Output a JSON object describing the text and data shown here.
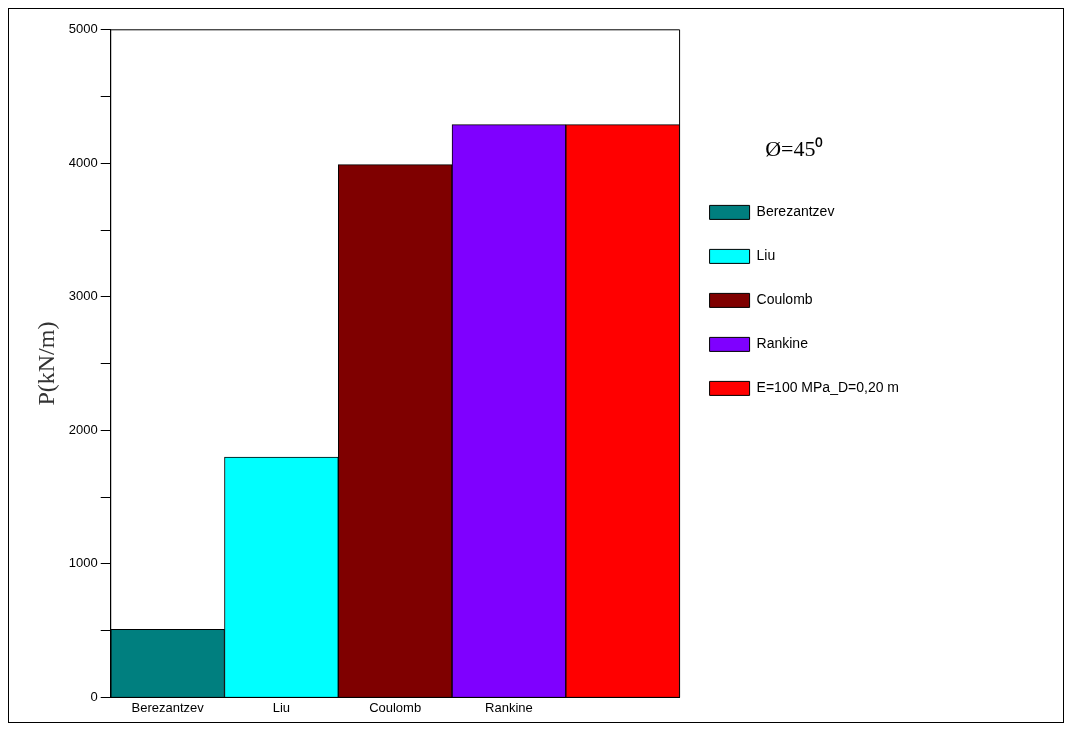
{
  "chart_data": {
    "type": "bar",
    "ylabel": "P(kN/m)",
    "legend_title": "Ø=45⁰",
    "legend": "right",
    "grid": false,
    "categories": [
      "Berezantzev",
      "Liu",
      "Coulomb",
      "Rankine",
      null
    ],
    "series": [
      {
        "name": "Berezantzev",
        "color": "#007f7f",
        "values": [
          510,
          null,
          null,
          null,
          null
        ]
      },
      {
        "name": "Liu",
        "color": "#00ffff",
        "values": [
          null,
          1800,
          null,
          null,
          null
        ]
      },
      {
        "name": "Coulomb",
        "color": "#7f0000",
        "values": [
          null,
          null,
          3990,
          null,
          null
        ]
      },
      {
        "name": "Rankine",
        "color": "#7f00ff",
        "values": [
          null,
          null,
          null,
          4290,
          null
        ]
      },
      {
        "name": "E=100 MPa_D=0,20 m",
        "color": "#ff0000",
        "values": [
          null,
          null,
          null,
          null,
          4290
        ]
      }
    ],
    "ylim": [
      0,
      5000
    ],
    "yticks": [
      0,
      {
        "value": 500,
        "label": null
      },
      1000,
      {
        "value": 1500,
        "label": null
      },
      2000,
      {
        "value": 2500,
        "label": null
      },
      3000,
      {
        "value": 3500,
        "label": null
      },
      4000,
      {
        "value": 4500,
        "label": null
      },
      5000
    ]
  }
}
